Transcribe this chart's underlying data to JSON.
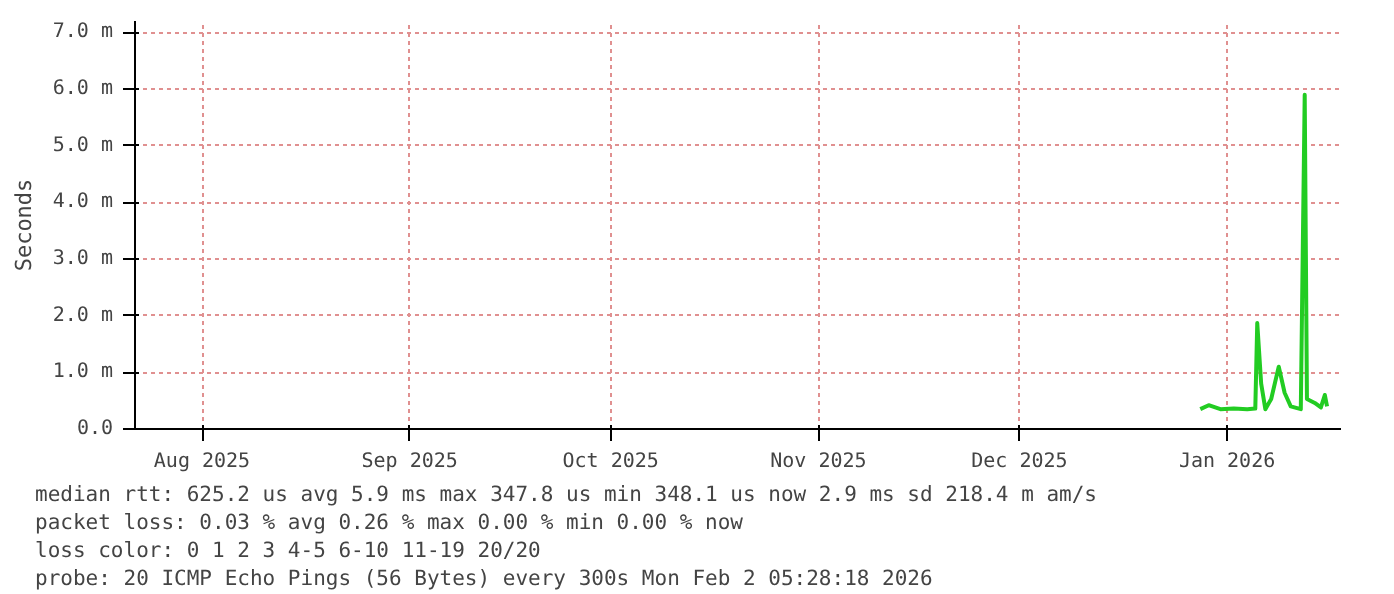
{
  "chart_data": {
    "type": "line",
    "ylabel": "Seconds",
    "x": [
      "2026-01-12T00:00",
      "2026-01-13T06:00",
      "2026-01-15T00:00",
      "2026-01-17T00:00",
      "2026-01-19T00:00",
      "2026-01-20T05:00",
      "2026-01-20T12:00",
      "2026-01-21T02:00",
      "2026-01-21T17:00",
      "2026-01-22T14:00",
      "2026-01-23T17:00",
      "2026-01-24T14:00",
      "2026-01-25T12:00",
      "2026-01-27T00:00",
      "2026-01-27T14:00",
      "2026-01-27T22:00",
      "2026-01-29T02:00",
      "2026-01-30T00:00",
      "2026-01-30T14:00",
      "2026-01-30T22:00"
    ],
    "series": [
      {
        "color": "#22cc22",
        "values": [
          0.35,
          0.42,
          0.35,
          0.36,
          0.35,
          0.36,
          1.87,
          0.8,
          0.35,
          0.53,
          1.1,
          0.64,
          0.4,
          0.35,
          5.9,
          0.53,
          0.46,
          0.38,
          0.6,
          0.4
        ]
      }
    ],
    "xlim": [
      "2025-08-06",
      "2026-02-02"
    ],
    "xticks": [
      {
        "value": "2025-08-16",
        "label": "Aug 2025"
      },
      {
        "value": "2025-09-16",
        "label": "Sep 2025"
      },
      {
        "value": "2025-10-16",
        "label": "Oct 2025"
      },
      {
        "value": "2025-11-16",
        "label": "Nov 2025"
      },
      {
        "value": "2025-12-16",
        "label": "Dec 2025"
      },
      {
        "value": "2026-01-16",
        "label": "Jan 2026"
      }
    ],
    "ylim": [
      0,
      7.2
    ],
    "yticks": [
      {
        "value": 0,
        "label": "0.0"
      },
      {
        "value": 1,
        "label": "1.0 m"
      },
      {
        "value": 2,
        "label": "2.0 m"
      },
      {
        "value": 3,
        "label": "3.0 m"
      },
      {
        "value": 4,
        "label": "4.0 m"
      },
      {
        "value": 5,
        "label": "5.0 m"
      },
      {
        "value": 6,
        "label": "6.0 m"
      },
      {
        "value": 7,
        "label": "7.0 m"
      }
    ],
    "grid": true,
    "annotations": [
      "median rtt:  625.2 us avg  5.9 ms max  347.8 us min  348.1 us now  2.9 ms sd  218.4 m am/s",
      "packet loss: 0.03 % avg  0.26 % max  0.00 % min  0.00 % now",
      "loss color:  0  1  2  3  4-5  6-10  11-19  20/20",
      "probe:       20 ICMP Echo Pings (56 Bytes) every 300s                 Mon Feb  2 05:28:18 2026"
    ]
  }
}
